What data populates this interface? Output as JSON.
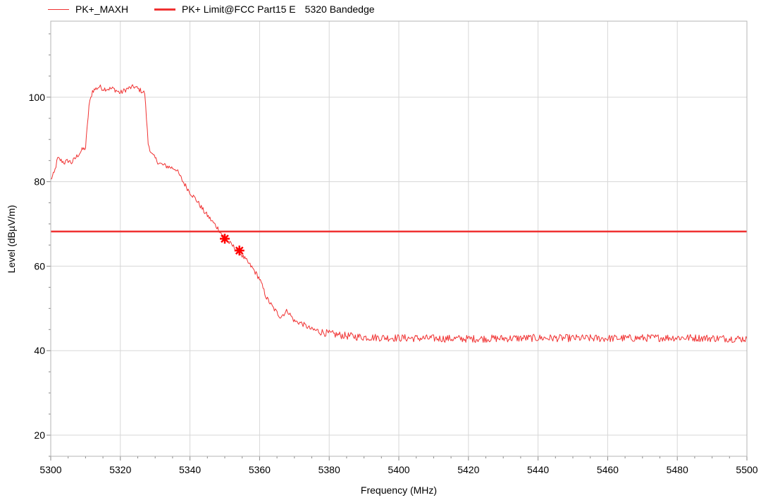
{
  "chart_data": {
    "type": "line",
    "xlabel": "Frequency (MHz)",
    "ylabel": "Level (dBµV/m)",
    "xlim": [
      5300,
      5500
    ],
    "ylim": [
      15,
      118
    ],
    "xticks": [
      5300,
      5320,
      5340,
      5360,
      5380,
      5400,
      5420,
      5440,
      5460,
      5480,
      5500
    ],
    "yticks": [
      20,
      40,
      60,
      80,
      100
    ],
    "grid": true,
    "legend_position": "top-left",
    "series": [
      {
        "name": "PK+_MAXH",
        "color": "#f03232",
        "style": "thin-line",
        "x": [
          5300,
          5301,
          5302,
          5303,
          5304,
          5305,
          5306,
          5307,
          5308,
          5309,
          5310,
          5311,
          5312,
          5313,
          5314,
          5315,
          5316,
          5318,
          5320,
          5321,
          5322,
          5324,
          5325,
          5326,
          5327,
          5328,
          5329,
          5330,
          5331,
          5332,
          5334,
          5336,
          5338,
          5340,
          5342,
          5344,
          5346,
          5348,
          5350,
          5352,
          5354,
          5356,
          5358,
          5360,
          5362,
          5364,
          5366,
          5368,
          5370,
          5372,
          5375,
          5380,
          5385,
          5390,
          5400,
          5420,
          5440,
          5460,
          5480,
          5500
        ],
        "y": [
          80.5,
          82,
          85.5,
          85,
          84.5,
          85,
          84.5,
          85.5,
          86.5,
          87.5,
          88,
          98,
          101.5,
          102,
          102.5,
          102,
          102,
          102,
          101,
          101.5,
          102,
          102.5,
          102,
          101.5,
          101,
          89,
          86.5,
          85.5,
          84.5,
          84,
          83.5,
          83,
          80,
          77.5,
          75.5,
          73,
          71,
          69,
          66.5,
          65,
          63.5,
          61.5,
          59.5,
          57,
          52.5,
          50,
          48,
          49.5,
          47,
          46.5,
          45,
          44,
          43.5,
          43.2,
          43,
          42.8,
          43,
          42.9,
          43.1,
          42.8
        ]
      },
      {
        "name": "PK+ Limit@FCC Part15 E",
        "color": "#f03232",
        "style": "thick-line",
        "x": [
          5300,
          5500
        ],
        "y": [
          68.2,
          68.2
        ]
      }
    ],
    "markers": [
      {
        "x": 5350,
        "y": 66.5
      },
      {
        "x": 5354.2,
        "y": 63.7
      }
    ],
    "legend": [
      {
        "label": "PK+_MAXH"
      },
      {
        "label": "PK+ Limit@FCC Part15 E"
      },
      {
        "label": "5320 Bandedge"
      }
    ]
  }
}
